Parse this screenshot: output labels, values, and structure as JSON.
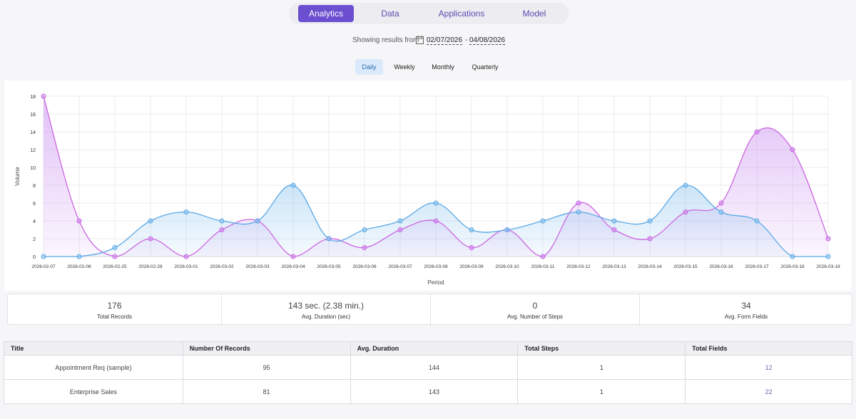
{
  "nav": {
    "tabs": [
      {
        "label": "Analytics",
        "active": true
      },
      {
        "label": "Data",
        "active": false
      },
      {
        "label": "Applications",
        "active": false
      },
      {
        "label": "Model",
        "active": false
      }
    ]
  },
  "date_range": {
    "label": "Showing results from",
    "icon": "calendar-icon",
    "start": "02/07/2026",
    "separator": "-",
    "end": "04/08/2026"
  },
  "period_options": [
    {
      "label": "Daily",
      "active": true
    },
    {
      "label": "Weekly",
      "active": false
    },
    {
      "label": "Monthly",
      "active": false
    },
    {
      "label": "Quarterly",
      "active": false
    }
  ],
  "chart_data": {
    "type": "area",
    "xlabel": "Period",
    "ylabel": "Volume",
    "ylim": [
      0,
      18
    ],
    "yticks": [
      0,
      2,
      4,
      6,
      8,
      10,
      12,
      14,
      16,
      18
    ],
    "grid": true,
    "categories": [
      "2026-02-07",
      "2026-02-08",
      "2026-02-25",
      "2026-02-28",
      "2026-03-01",
      "2026-03-02",
      "2026-03-03",
      "2026-03-04",
      "2026-03-05",
      "2026-03-06",
      "2026-03-07",
      "2026-03-08",
      "2026-03-09",
      "2026-03-10",
      "2026-03-11",
      "2026-03-12",
      "2026-03-13",
      "2026-03-14",
      "2026-03-15",
      "2026-03-16",
      "2026-03-17",
      "2026-03-18",
      "2026-03-19"
    ],
    "series": [
      {
        "color": "#cc66e0",
        "fill": "#c98ef0",
        "values": [
          18,
          4,
          0,
          2,
          0,
          3,
          4,
          0,
          2,
          1,
          3,
          4,
          1,
          3,
          0,
          6,
          3,
          2,
          5,
          6,
          14,
          12,
          2
        ]
      },
      {
        "color": "#5ba9e6",
        "fill": "#8cc4f0",
        "values": [
          0,
          0,
          1,
          4,
          5,
          4,
          4,
          8,
          2,
          3,
          4,
          6,
          3,
          3,
          4,
          5,
          4,
          4,
          8,
          5,
          4,
          0,
          0
        ]
      }
    ]
  },
  "stats": [
    {
      "value": "176",
      "label": "Total Records"
    },
    {
      "value": "143 sec. (2.38 min.)",
      "label": "Avg. Duration (sec)"
    },
    {
      "value": "0",
      "label": "Avg. Number of Steps"
    },
    {
      "value": "34",
      "label": "Avg. Form Fields"
    }
  ],
  "table": {
    "columns": [
      "Title",
      "Number Of Records",
      "Avg. Duration",
      "Total Steps",
      "Total Fields"
    ],
    "rows": [
      [
        "Appointment Req (sample)",
        "95",
        "144",
        "1",
        "12"
      ],
      [
        "Enterprise Sales",
        "81",
        "143",
        "1",
        "22"
      ]
    ]
  }
}
